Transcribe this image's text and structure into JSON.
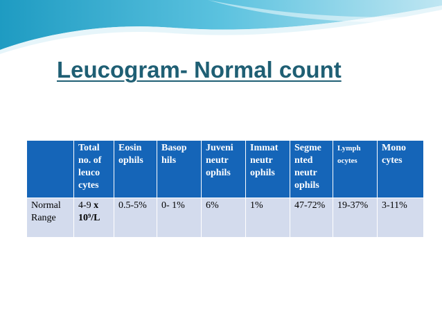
{
  "slide": {
    "title": "Leucogram- Normal count"
  },
  "table": {
    "headers": [
      "",
      "Total no. of leuco cytes",
      "Eosin ophils",
      "Basop hils",
      "Juveni neutr ophils",
      "Immat neutr ophils",
      "Segme nted neutr ophils",
      "Lymph ocytes",
      "Mono cytes"
    ],
    "rows": [
      {
        "label": "Normal Range",
        "total_prefix": "4-9",
        "total_suffix": "x 10⁹/L",
        "eosinophils": "0.5-5%",
        "basophils": "0- 1%",
        "juvenile": "6%",
        "immature": "1%",
        "segmented": "47-72%",
        "lymphocytes": "19-37%",
        "monocytes": "3-11%"
      }
    ]
  },
  "colors": {
    "title": "#1f5f74",
    "header_bg": "#1565b8",
    "row_bg": "#d3dbed",
    "wave_dark": "#2aa5c7",
    "wave_light": "#bfe6f2"
  }
}
